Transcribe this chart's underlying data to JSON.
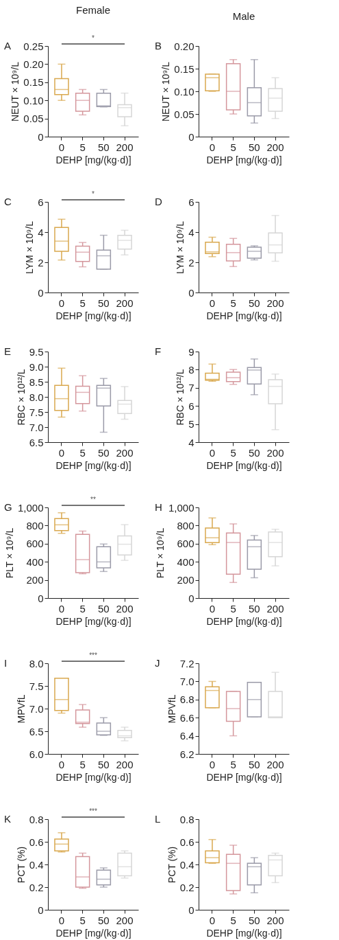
{
  "chart_data": [
    {
      "type": "box",
      "title": "Female",
      "annotations": [
        "A",
        "*"
      ],
      "categories": [
        "0",
        "5",
        "50",
        "200"
      ],
      "colors": [
        "#d9a84e",
        "#d4969c",
        "#9a9aa8",
        "#d6d6d6"
      ],
      "xlabel": "DEHP [mg/(kg·d)]",
      "ylabel": "NEUT × 10⁹/L",
      "ylim": [
        0,
        0.25
      ],
      "yticks": [
        0,
        0.05,
        {
          "value": 0.1,
          "label": "0.10"
        },
        0.15,
        {
          "value": 0.2,
          "label": "0.20"
        },
        0.25
      ],
      "boxes": [
        {
          "low": 0.1,
          "q1": 0.116,
          "median": 0.13,
          "q3": 0.16,
          "high": 0.2
        },
        {
          "low": 0.06,
          "q1": 0.07,
          "median": 0.1,
          "q3": 0.12,
          "high": 0.13
        },
        {
          "low": 0.082,
          "q1": 0.083,
          "median": 0.085,
          "q3": 0.12,
          "high": 0.13
        },
        {
          "low": 0.03,
          "q1": 0.055,
          "median": 0.08,
          "q3": 0.088,
          "high": 0.12
        }
      ]
    },
    {
      "type": "box",
      "title": "Male",
      "annotations": [
        "B"
      ],
      "categories": [
        "0",
        "5",
        "50",
        "200"
      ],
      "colors": [
        "#d9a84e",
        "#d4969c",
        "#9a9aa8",
        "#d6d6d6"
      ],
      "xlabel": "DEHP [mg/(kg·d)]",
      "ylabel": "NEUT × 10⁹/L",
      "ylim": [
        0,
        0.2
      ],
      "yticks": [
        0,
        0.05,
        {
          "value": 0.1,
          "label": "0.10"
        },
        0.15,
        {
          "value": 0.2,
          "label": "0.20"
        }
      ],
      "boxes": [
        {
          "low": 0.1,
          "q1": 0.101,
          "median": 0.13,
          "q3": 0.138,
          "high": 0.138
        },
        {
          "low": 0.05,
          "q1": 0.059,
          "median": 0.1,
          "q3": 0.161,
          "high": 0.17
        },
        {
          "low": 0.03,
          "q1": 0.046,
          "median": 0.075,
          "q3": 0.108,
          "high": 0.17
        },
        {
          "low": 0.04,
          "q1": 0.056,
          "median": 0.085,
          "q3": 0.106,
          "high": 0.13
        }
      ]
    },
    {
      "type": "box",
      "annotations": [
        "C",
        "*"
      ],
      "categories": [
        "0",
        "5",
        "50",
        "200"
      ],
      "colors": [
        "#d9a84e",
        "#d4969c",
        "#9a9aa8",
        "#d6d6d6"
      ],
      "xlabel": "DEHP [mg/(kg·d)]",
      "ylabel": "LYM × 10⁹/L",
      "ylim": [
        0,
        6
      ],
      "yticks": [
        0,
        2,
        4,
        6
      ],
      "boxes": [
        {
          "low": 2.15,
          "q1": 2.73,
          "median": 3.4,
          "q3": 4.31,
          "high": 4.85
        },
        {
          "low": 1.7,
          "q1": 2.06,
          "median": 2.67,
          "q3": 3.07,
          "high": 3.31
        },
        {
          "low": 1.54,
          "q1": 1.55,
          "median": 2.43,
          "q3": 2.81,
          "high": 3.79
        },
        {
          "low": 2.49,
          "q1": 2.88,
          "median": 3.45,
          "q3": 3.78,
          "high": 4.12
        }
      ]
    },
    {
      "type": "box",
      "annotations": [
        "D"
      ],
      "categories": [
        "0",
        "5",
        "50",
        "200"
      ],
      "colors": [
        "#d9a84e",
        "#d4969c",
        "#9a9aa8",
        "#d6d6d6"
      ],
      "xlabel": "DEHP [mg/(kg·d)]",
      "ylabel": "LYM × 10⁹/L",
      "ylim": [
        0,
        6
      ],
      "yticks": [
        0,
        2,
        4,
        6
      ],
      "boxes": [
        {
          "low": 2.37,
          "q1": 2.58,
          "median": 2.69,
          "q3": 3.33,
          "high": 3.66
        },
        {
          "low": 1.72,
          "q1": 2.09,
          "median": 2.64,
          "q3": 3.19,
          "high": 3.58
        },
        {
          "low": 2.16,
          "q1": 2.27,
          "median": 2.73,
          "q3": 3.0,
          "high": 3.09
        },
        {
          "low": 2.07,
          "q1": 2.63,
          "median": 3.15,
          "q3": 3.94,
          "high": 5.1
        }
      ]
    },
    {
      "type": "box",
      "annotations": [
        "E"
      ],
      "categories": [
        "0",
        "5",
        "50",
        "200"
      ],
      "colors": [
        "#d9a84e",
        "#d4969c",
        "#9a9aa8",
        "#d6d6d6"
      ],
      "xlabel": "DEHP [mg/(kg·d)]",
      "ylabel": "RBC × 10¹²/L",
      "ylim": [
        6.5,
        9.5
      ],
      "yticks": [
        6.5,
        {
          "value": 7,
          "label": "7.0"
        },
        7.5,
        {
          "value": 8,
          "label": "8.0"
        },
        8.5,
        {
          "value": 9,
          "label": "9.0"
        },
        9.5
      ],
      "boxes": [
        {
          "low": 7.33,
          "q1": 7.55,
          "median": 7.94,
          "q3": 8.38,
          "high": 8.95
        },
        {
          "low": 7.53,
          "q1": 7.78,
          "median": 8.15,
          "q3": 8.35,
          "high": 8.7
        },
        {
          "low": 6.83,
          "q1": 7.7,
          "median": 8.29,
          "q3": 8.38,
          "high": 8.61
        },
        {
          "low": 7.26,
          "q1": 7.45,
          "median": 7.76,
          "q3": 7.88,
          "high": 8.34
        }
      ]
    },
    {
      "type": "box",
      "annotations": [
        "F"
      ],
      "categories": [
        "0",
        "5",
        "50",
        "200"
      ],
      "colors": [
        "#d9a84e",
        "#d4969c",
        "#9a9aa8",
        "#d6d6d6"
      ],
      "xlabel": "DEHP [mg/(kg·d)]",
      "ylabel": "RBC × 10¹²/L",
      "ylim": [
        4,
        9
      ],
      "yticks": [
        4,
        5,
        6,
        7,
        8,
        9
      ],
      "boxes": [
        {
          "low": 7.36,
          "q1": 7.42,
          "median": 7.47,
          "q3": 7.81,
          "high": 8.31
        },
        {
          "low": 7.19,
          "q1": 7.34,
          "median": 7.56,
          "q3": 7.86,
          "high": 8.01
        },
        {
          "low": 6.62,
          "q1": 7.21,
          "median": 7.98,
          "q3": 8.12,
          "high": 8.59
        },
        {
          "low": 4.69,
          "q1": 6.12,
          "median": 7.08,
          "q3": 7.45,
          "high": 7.76
        }
      ]
    },
    {
      "type": "box",
      "annotations": [
        "G",
        "**"
      ],
      "categories": [
        "0",
        "5",
        "50",
        "200"
      ],
      "colors": [
        "#d9a84e",
        "#d4969c",
        "#9a9aa8",
        "#d6d6d6"
      ],
      "xlabel": "DEHP [mg/(kg·d)]",
      "ylabel": "PLT × 10⁹/L",
      "ylim": [
        0,
        1000
      ],
      "yticks": [
        0,
        200,
        400,
        600,
        800,
        {
          "value": 1000,
          "label": "1,000"
        }
      ],
      "boxes": [
        {
          "low": 714,
          "q1": 744,
          "median": 808,
          "q3": 877,
          "high": 941
        },
        {
          "low": 268,
          "q1": 281,
          "median": 424,
          "q3": 702,
          "high": 739
        },
        {
          "low": 293,
          "q1": 333,
          "median": 399,
          "q3": 567,
          "high": 596
        },
        {
          "low": 416,
          "q1": 475,
          "median": 594,
          "q3": 685,
          "high": 810
        }
      ]
    },
    {
      "type": "box",
      "annotations": [
        "H"
      ],
      "categories": [
        "0",
        "5",
        "50",
        "200"
      ],
      "colors": [
        "#d9a84e",
        "#d4969c",
        "#9a9aa8",
        "#d6d6d6"
      ],
      "xlabel": "DEHP [mg/(kg·d)]",
      "ylabel": "PLT × 10⁹/L",
      "ylim": [
        0,
        1000
      ],
      "yticks": [
        0,
        200,
        400,
        600,
        800,
        {
          "value": 1000,
          "label": "1,000"
        }
      ],
      "boxes": [
        {
          "low": 589,
          "q1": 611,
          "median": 665,
          "q3": 773,
          "high": 884
        },
        {
          "low": 172,
          "q1": 263,
          "median": 613,
          "q3": 717,
          "high": 818
        },
        {
          "low": 224,
          "q1": 318,
          "median": 566,
          "q3": 640,
          "high": 690
        },
        {
          "low": 355,
          "q1": 456,
          "median": 613,
          "q3": 729,
          "high": 759
        }
      ]
    },
    {
      "type": "box",
      "annotations": [
        "I",
        "***"
      ],
      "categories": [
        "0",
        "5",
        "50",
        "200"
      ],
      "colors": [
        "#d9a84e",
        "#d4969c",
        "#9a9aa8",
        "#d6d6d6"
      ],
      "xlabel": "DEHP [mg/(kg·d)]",
      "ylabel": "MPVfL",
      "ylim": [
        6,
        8
      ],
      "yticks": [
        {
          "value": 6,
          "label": "6.0"
        },
        6.5,
        {
          "value": 7,
          "label": "7.0"
        },
        7.5,
        {
          "value": 8,
          "label": "8.0"
        }
      ],
      "boxes": [
        {
          "low": 6.9,
          "q1": 6.96,
          "median": 7.2,
          "q3": 7.67,
          "high": 7.67
        },
        {
          "low": 6.59,
          "q1": 6.67,
          "median": 6.7,
          "q3": 6.97,
          "high": 7.09
        },
        {
          "low": 6.41,
          "q1": 6.42,
          "median": 6.5,
          "q3": 6.68,
          "high": 6.8
        },
        {
          "low": 6.29,
          "q1": 6.36,
          "median": 6.4,
          "q3": 6.52,
          "high": 6.59
        }
      ]
    },
    {
      "type": "box",
      "annotations": [
        "J"
      ],
      "categories": [
        "0",
        "5",
        "50",
        "200"
      ],
      "colors": [
        "#d9a84e",
        "#d4969c",
        "#9a9aa8",
        "#d6d6d6"
      ],
      "xlabel": "DEHP [mg/(kg·d)]",
      "ylabel": "MPVfL",
      "ylim": [
        6.2,
        7.2
      ],
      "yticks": [
        6.2,
        6.4,
        6.6,
        6.8,
        {
          "value": 7,
          "label": "7.0"
        },
        7.2
      ],
      "boxes": [
        {
          "low": 6.71,
          "q1": 6.71,
          "median": 6.9,
          "q3": 6.94,
          "high": 7.0
        },
        {
          "low": 6.4,
          "q1": 6.56,
          "median": 6.7,
          "q3": 6.89,
          "high": 6.89
        },
        {
          "low": 6.61,
          "q1": 6.61,
          "median": 6.8,
          "q3": 6.99,
          "high": 6.99
        },
        {
          "low": 6.6,
          "q1": 6.6,
          "median": 6.61,
          "q3": 6.89,
          "high": 7.1
        }
      ]
    },
    {
      "type": "box",
      "annotations": [
        "K",
        "***"
      ],
      "categories": [
        "0",
        "5",
        "50",
        "200"
      ],
      "colors": [
        "#d9a84e",
        "#d4969c",
        "#9a9aa8",
        "#d6d6d6"
      ],
      "xlabel": "DEHP [mg/(kg·d)]",
      "ylabel": "PCT (%)",
      "ylim": [
        0,
        0.8
      ],
      "yticks": [
        0,
        0.2,
        0.4,
        0.6,
        0.8
      ],
      "boxes": [
        {
          "low": 0.51,
          "q1": 0.52,
          "median": 0.58,
          "q3": 0.625,
          "high": 0.68
        },
        {
          "low": 0.19,
          "q1": 0.2,
          "median": 0.29,
          "q3": 0.47,
          "high": 0.5
        },
        {
          "low": 0.2,
          "q1": 0.22,
          "median": 0.27,
          "q3": 0.35,
          "high": 0.37
        },
        {
          "low": 0.28,
          "q1": 0.3,
          "median": 0.38,
          "q3": 0.5,
          "high": 0.52
        }
      ]
    },
    {
      "type": "box",
      "annotations": [
        "L"
      ],
      "categories": [
        "0",
        "5",
        "50",
        "200"
      ],
      "colors": [
        "#d9a84e",
        "#d4969c",
        "#9a9aa8",
        "#d6d6d6"
      ],
      "xlabel": "DEHP [mg/(kg·d)]",
      "ylabel": "PCT (%)",
      "ylim": [
        0,
        0.8
      ],
      "yticks": [
        0,
        0.2,
        0.4,
        0.6,
        0.8
      ],
      "boxes": [
        {
          "low": 0.41,
          "q1": 0.415,
          "median": 0.46,
          "q3": 0.52,
          "high": 0.62
        },
        {
          "low": 0.14,
          "q1": 0.17,
          "median": 0.41,
          "q3": 0.49,
          "high": 0.57
        },
        {
          "low": 0.15,
          "q1": 0.22,
          "median": 0.38,
          "q3": 0.41,
          "high": 0.46
        },
        {
          "low": 0.24,
          "q1": 0.3,
          "median": 0.44,
          "q3": 0.48,
          "high": 0.5
        }
      ]
    }
  ]
}
